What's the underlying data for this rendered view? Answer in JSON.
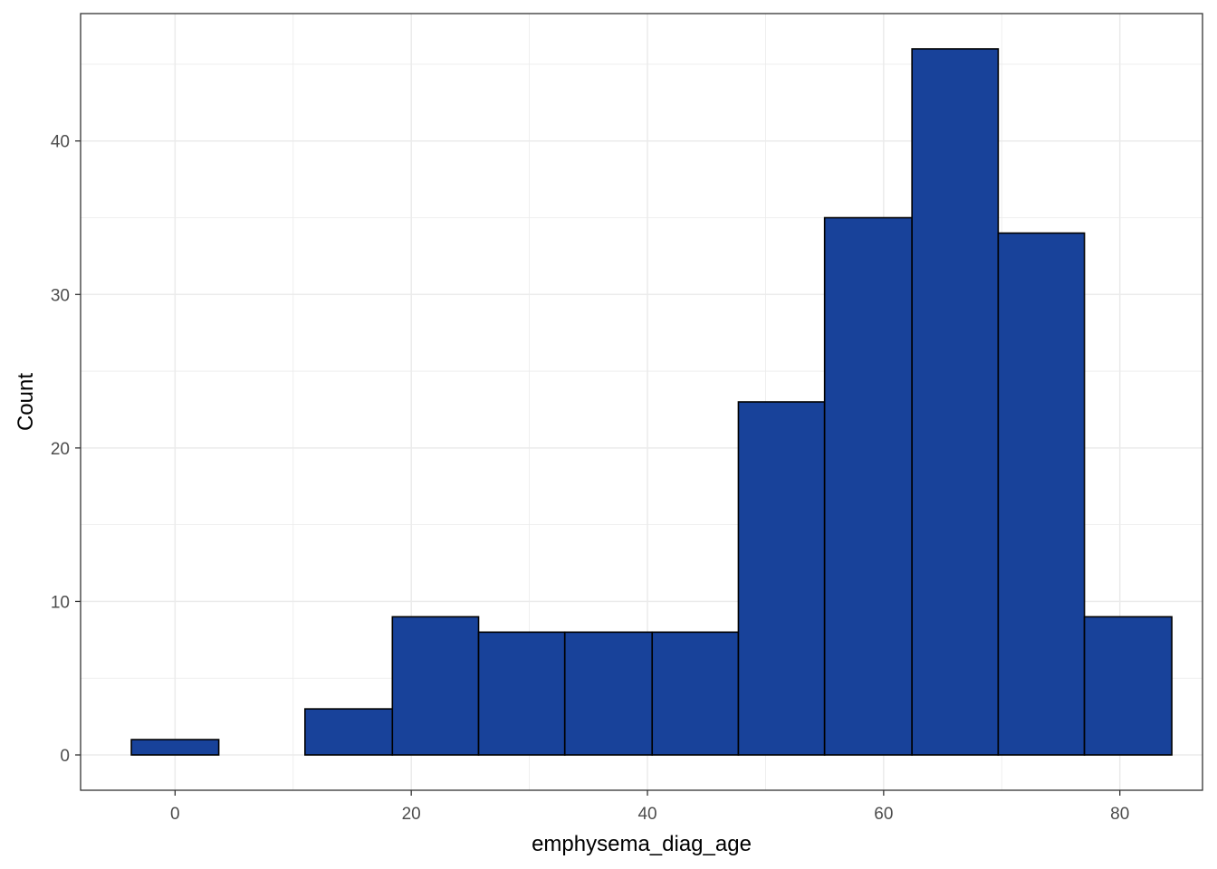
{
  "chart_data": {
    "type": "bar",
    "subtype": "histogram",
    "title": "",
    "xlabel": "emphysema_diag_age",
    "ylabel": "Count",
    "bins": [
      {
        "x_start": -3.7,
        "x_end": 3.7,
        "count": 1
      },
      {
        "x_start": 3.7,
        "x_end": 11.0,
        "count": 0
      },
      {
        "x_start": 11.0,
        "x_end": 18.4,
        "count": 3
      },
      {
        "x_start": 18.4,
        "x_end": 25.7,
        "count": 9
      },
      {
        "x_start": 25.7,
        "x_end": 33.0,
        "count": 8
      },
      {
        "x_start": 33.0,
        "x_end": 40.4,
        "count": 8
      },
      {
        "x_start": 40.4,
        "x_end": 47.7,
        "count": 8
      },
      {
        "x_start": 47.7,
        "x_end": 55.0,
        "count": 23
      },
      {
        "x_start": 55.0,
        "x_end": 62.4,
        "count": 35
      },
      {
        "x_start": 62.4,
        "x_end": 69.7,
        "count": 46
      },
      {
        "x_start": 69.7,
        "x_end": 77.0,
        "count": 34
      },
      {
        "x_start": 77.0,
        "x_end": 84.4,
        "count": 9
      }
    ],
    "xlim": [
      -8,
      87
    ],
    "ylim": [
      -2.3,
      48.3
    ],
    "x_ticks": [
      0,
      20,
      40,
      60,
      80
    ],
    "y_ticks": [
      0,
      10,
      20,
      30,
      40
    ],
    "x_tick_labels": [
      "0",
      "20",
      "40",
      "60",
      "80"
    ],
    "y_tick_labels": [
      "0",
      "10",
      "20",
      "30",
      "40"
    ],
    "bar_fill": "#18429A",
    "bar_outline": "#000000",
    "panel_background": "#FFFFFF",
    "grid_color": "#EBEBEB",
    "grid": true,
    "legend": "none"
  }
}
